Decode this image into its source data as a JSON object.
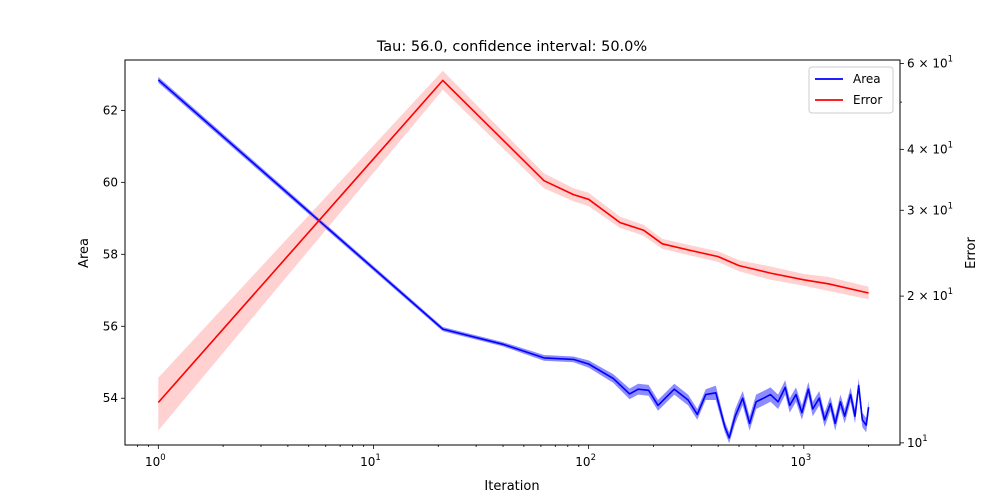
{
  "chart_data": {
    "type": "line",
    "title": "Tau: 56.0, confidence interval: 50.0%",
    "xlabel": "Iteration",
    "ylabel": "Area",
    "ylabel_right": "Error",
    "xscale": "log",
    "xlim": [
      0.7,
      2800
    ],
    "ylim": [
      52.7,
      63.4
    ],
    "ylim_right": [
      9.9,
      61
    ],
    "yscale_right": "log",
    "x_ticks": [
      {
        "value": 1,
        "base": "10",
        "exp": "0"
      },
      {
        "value": 10,
        "base": "10",
        "exp": "1"
      },
      {
        "value": 100,
        "base": "10",
        "exp": "2"
      },
      {
        "value": 1000,
        "base": "10",
        "exp": "3"
      }
    ],
    "y_ticks": [
      "54",
      "56",
      "58",
      "60",
      "62"
    ],
    "y_ticks_right": [
      {
        "value": 10,
        "mant": "10",
        "exp": "1"
      },
      {
        "value": 20,
        "mant": "2 × 10",
        "exp": "1"
      },
      {
        "value": 30,
        "mant": "3 × 10",
        "exp": "1"
      },
      {
        "value": 40,
        "mant": "4 × 10",
        "exp": "1"
      },
      {
        "value": 60,
        "mant": "6 × 10",
        "exp": "1"
      }
    ],
    "legend_position": "top-right",
    "series": [
      {
        "name": "Area",
        "color": "#0000ff",
        "band_color": "#0000ff",
        "axis": "left",
        "points": [
          [
            1,
            62.85
          ],
          [
            21,
            55.92
          ],
          [
            40,
            55.5
          ],
          [
            62,
            55.12
          ],
          [
            85,
            55.08
          ],
          [
            100,
            54.95
          ],
          [
            130,
            54.55
          ],
          [
            155,
            54.12
          ],
          [
            170,
            54.25
          ],
          [
            190,
            54.22
          ],
          [
            210,
            53.8
          ],
          [
            250,
            54.25
          ],
          [
            290,
            53.95
          ],
          [
            320,
            53.55
          ],
          [
            350,
            54.1
          ],
          [
            390,
            54.15
          ],
          [
            430,
            53.2
          ],
          [
            450,
            52.9
          ],
          [
            480,
            53.5
          ],
          [
            520,
            54.0
          ],
          [
            560,
            53.3
          ],
          [
            600,
            53.9
          ],
          [
            650,
            54.0
          ],
          [
            700,
            54.1
          ],
          [
            760,
            53.9
          ],
          [
            820,
            54.3
          ],
          [
            860,
            53.8
          ],
          [
            920,
            54.1
          ],
          [
            980,
            53.6
          ],
          [
            1050,
            54.25
          ],
          [
            1100,
            53.7
          ],
          [
            1180,
            54.0
          ],
          [
            1250,
            53.4
          ],
          [
            1330,
            53.85
          ],
          [
            1400,
            53.3
          ],
          [
            1480,
            53.9
          ],
          [
            1550,
            53.5
          ],
          [
            1650,
            54.1
          ],
          [
            1730,
            53.5
          ],
          [
            1800,
            54.35
          ],
          [
            1870,
            53.4
          ],
          [
            1950,
            53.25
          ],
          [
            2000,
            53.75
          ]
        ],
        "band_half": [
          0.08,
          0.06,
          0.06,
          0.08,
          0.08,
          0.1,
          0.12,
          0.15,
          0.15,
          0.15,
          0.15,
          0.15,
          0.15,
          0.15,
          0.15,
          0.2,
          0.15,
          0.15,
          0.2,
          0.2,
          0.2,
          0.2,
          0.2,
          0.2,
          0.2,
          0.2,
          0.2,
          0.2,
          0.2,
          0.2,
          0.2,
          0.2,
          0.2,
          0.2,
          0.2,
          0.2,
          0.2,
          0.2,
          0.2,
          0.2,
          0.2,
          0.2,
          0.2
        ]
      },
      {
        "name": "Error",
        "color": "#ff0000",
        "band_color": "#ff9999",
        "axis": "right",
        "points": [
          [
            1,
            12.1
          ],
          [
            21,
            55.4
          ],
          [
            62,
            34.5
          ],
          [
            85,
            32.3
          ],
          [
            100,
            31.6
          ],
          [
            140,
            28.3
          ],
          [
            180,
            27.3
          ],
          [
            220,
            25.6
          ],
          [
            300,
            24.8
          ],
          [
            400,
            24.1
          ],
          [
            500,
            23.1
          ],
          [
            700,
            22.3
          ],
          [
            1000,
            21.6
          ],
          [
            1300,
            21.2
          ],
          [
            2000,
            20.3
          ]
        ],
        "band": [
          [
            10.6,
            13.6
          ],
          [
            53.0,
            58.0
          ],
          [
            33.3,
            35.7
          ],
          [
            31.3,
            33.3
          ],
          [
            30.6,
            32.6
          ],
          [
            27.6,
            29.1
          ],
          [
            26.6,
            28.0
          ],
          [
            25.0,
            26.2
          ],
          [
            24.2,
            25.4
          ],
          [
            23.5,
            24.7
          ],
          [
            22.5,
            23.7
          ],
          [
            21.6,
            23.0
          ],
          [
            21.0,
            22.2
          ],
          [
            20.5,
            21.9
          ],
          [
            19.7,
            20.9
          ]
        ]
      }
    ]
  }
}
